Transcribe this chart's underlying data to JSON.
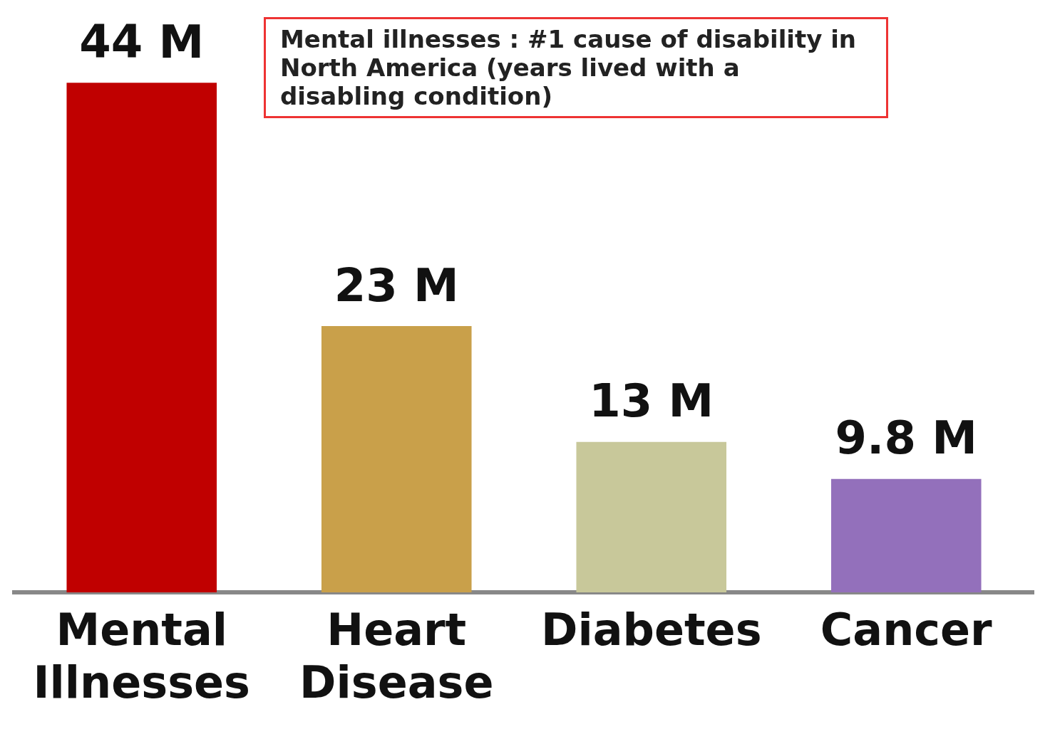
{
  "chart_data": {
    "type": "bar",
    "categories": [
      "Mental Illnesses",
      "Heart Disease",
      "Diabetes",
      "Cancer"
    ],
    "values": [
      44,
      23,
      13,
      9.8
    ],
    "colors": [
      "#c00000",
      "#c9a04a",
      "#c8c89a",
      "#9370bb"
    ],
    "value_labels": [
      "44 M",
      "23 M",
      "13 M",
      "9.8 M"
    ],
    "annotations": [
      "Mental illnesses : #1 cause of disability in North America (years lived with a disabling condition)"
    ],
    "grid": false,
    "legend": false
  }
}
